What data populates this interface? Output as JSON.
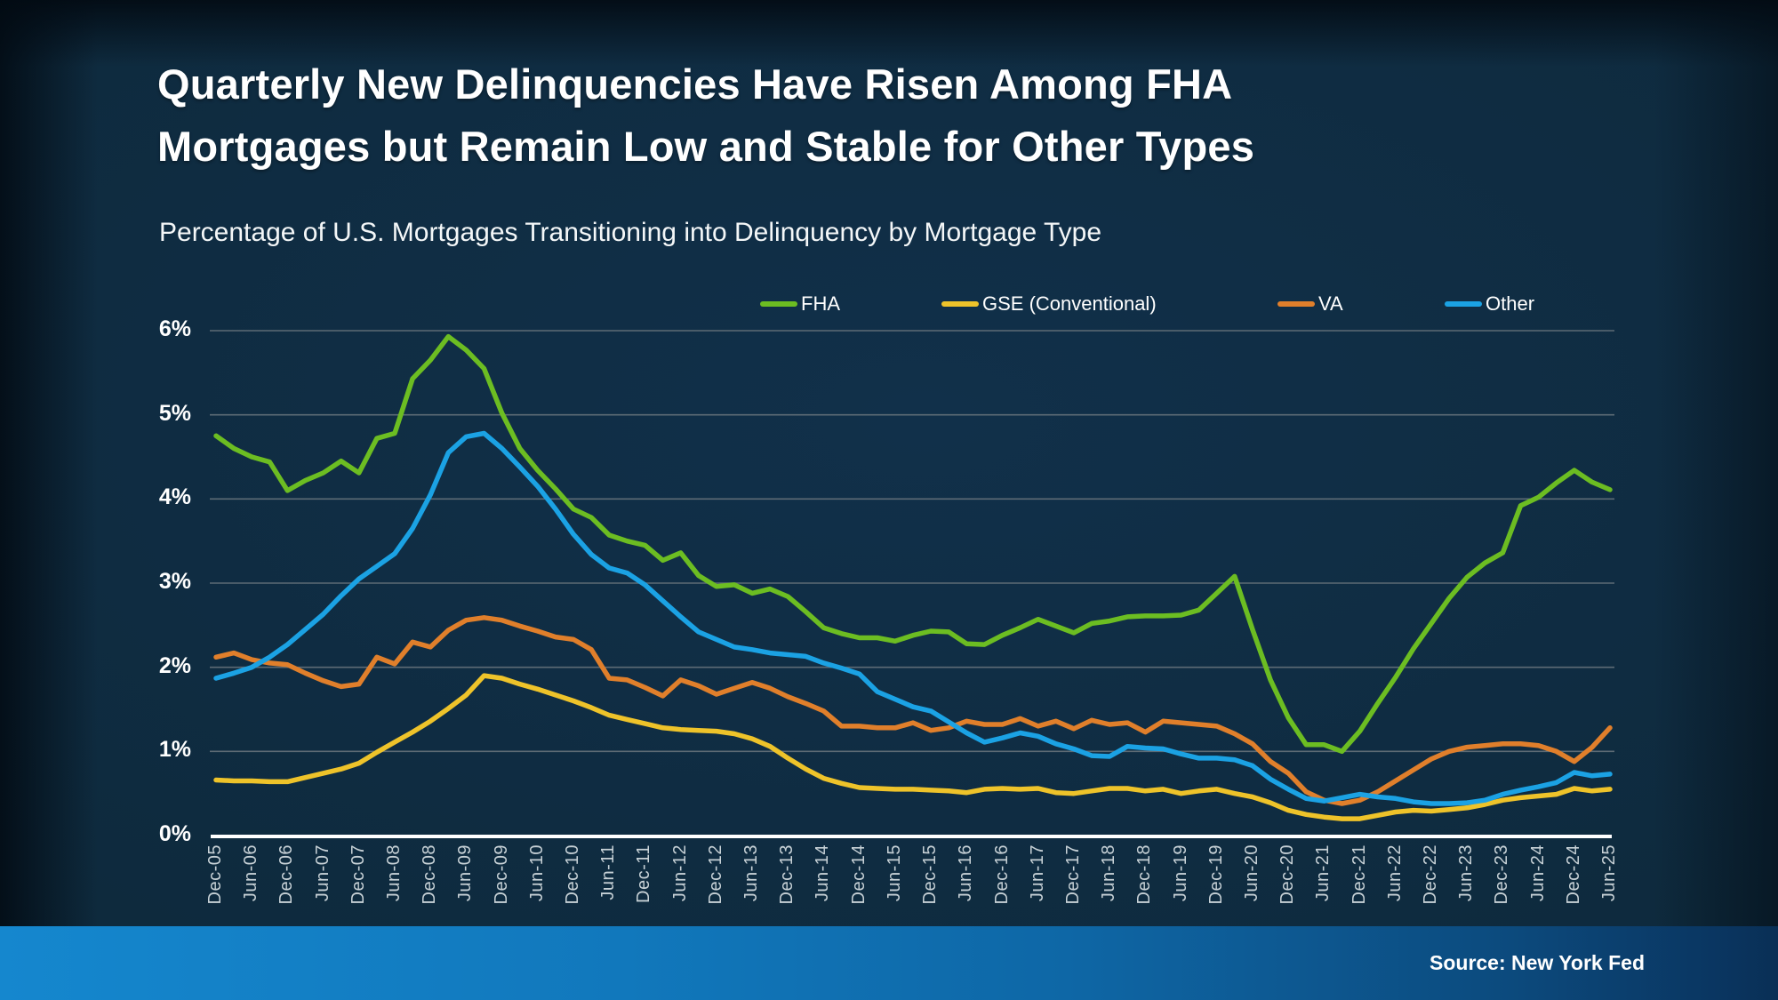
{
  "slide": {
    "title": "Quarterly New Delinquencies Have Risen Among FHA Mortgages but Remain Low and Stable for Other Types",
    "subtitle": "Percentage of U.S. Mortgages Transitioning into Delinquency by Mortgage Type",
    "source": "Source: New York Fed"
  },
  "colors": {
    "fha": "#6cbd22",
    "gse_conventional": "#eec32a",
    "va": "#e07f2b",
    "other": "#1ba2e4",
    "gridline": "#5d6b75",
    "zero_axis": "#ffffff",
    "x_label": "#c7d1d6",
    "y_label": "#ffffff",
    "background": "#0e2a3d",
    "source_bar_left": "#1587ce",
    "source_bar_right": "#092f55"
  },
  "chart_data": {
    "type": "line",
    "title": "Quarterly New Delinquencies Have Risen Among FHA Mortgages but Remain Low and Stable for Other Types",
    "subtitle": "Percentage of U.S. Mortgages Transitioning into Delinquency by Mortgage Type",
    "xlabel": "",
    "ylabel": "",
    "ylim": [
      0,
      6
    ],
    "y_tick_labels": [
      "0%",
      "1%",
      "2%",
      "3%",
      "4%",
      "5%",
      "6%"
    ],
    "grid": true,
    "legend_position": "top",
    "x_frequency": "quarterly",
    "x_tick_labels": [
      "Dec-05",
      "Jun-06",
      "Dec-06",
      "Jun-07",
      "Dec-07",
      "Jun-08",
      "Dec-08",
      "Jun-09",
      "Dec-09",
      "Jun-10",
      "Dec-10",
      "Jun-11",
      "Dec-11",
      "Jun-12",
      "Dec-12",
      "Jun-13",
      "Dec-13",
      "Jun-14",
      "Dec-14",
      "Jun-15",
      "Dec-15",
      "Jun-16",
      "Dec-16",
      "Jun-17",
      "Dec-17",
      "Jun-18",
      "Dec-18",
      "Jun-19",
      "Dec-19",
      "Jun-20",
      "Dec-20",
      "Jun-21",
      "Dec-21",
      "Jun-22",
      "Dec-22",
      "Jun-23",
      "Dec-23",
      "Jun-24",
      "Dec-24",
      "Jun-25"
    ],
    "series": [
      {
        "name": "FHA",
        "color": "#6cbd22",
        "values": [
          4.75,
          4.6,
          4.5,
          4.44,
          4.1,
          4.22,
          4.31,
          4.45,
          4.31,
          4.72,
          4.78,
          5.43,
          5.65,
          5.93,
          5.77,
          5.55,
          5.02,
          4.6,
          4.34,
          4.12,
          3.88,
          3.78,
          3.57,
          3.5,
          3.45,
          3.27,
          3.36,
          3.09,
          2.96,
          2.98,
          2.88,
          2.93,
          2.84,
          2.66,
          2.47,
          2.4,
          2.35,
          2.35,
          2.31,
          2.38,
          2.43,
          2.42,
          2.28,
          2.27,
          2.38,
          2.47,
          2.57,
          2.49,
          2.41,
          2.52,
          2.55,
          2.6,
          2.61,
          2.61,
          2.62,
          2.68,
          2.88,
          3.08,
          2.45,
          1.85,
          1.4,
          1.08,
          1.08,
          1.0,
          1.24,
          1.57,
          1.88,
          2.22,
          2.52,
          2.82,
          3.07,
          3.24,
          3.36,
          3.92,
          4.02,
          4.19,
          4.34,
          4.2,
          4.11
        ]
      },
      {
        "name": "GSE (Conventional)",
        "color": "#eec32a",
        "values": [
          0.66,
          0.65,
          0.65,
          0.64,
          0.64,
          0.69,
          0.74,
          0.79,
          0.86,
          0.99,
          1.11,
          1.23,
          1.36,
          1.51,
          1.67,
          1.9,
          1.87,
          1.8,
          1.74,
          1.67,
          1.6,
          1.52,
          1.43,
          1.38,
          1.33,
          1.28,
          1.26,
          1.25,
          1.24,
          1.21,
          1.15,
          1.06,
          0.92,
          0.79,
          0.68,
          0.62,
          0.57,
          0.56,
          0.55,
          0.55,
          0.54,
          0.53,
          0.51,
          0.55,
          0.56,
          0.55,
          0.56,
          0.51,
          0.5,
          0.53,
          0.56,
          0.56,
          0.53,
          0.55,
          0.5,
          0.53,
          0.55,
          0.5,
          0.46,
          0.39,
          0.3,
          0.25,
          0.22,
          0.2,
          0.2,
          0.24,
          0.28,
          0.3,
          0.29,
          0.31,
          0.33,
          0.37,
          0.42,
          0.45,
          0.47,
          0.49,
          0.56,
          0.53,
          0.55
        ]
      },
      {
        "name": "VA",
        "color": "#e07f2b",
        "values": [
          2.12,
          2.17,
          2.09,
          2.05,
          2.03,
          1.93,
          1.84,
          1.77,
          1.8,
          2.12,
          2.04,
          2.3,
          2.24,
          2.44,
          2.56,
          2.59,
          2.56,
          2.49,
          2.43,
          2.36,
          2.33,
          2.21,
          1.87,
          1.85,
          1.76,
          1.66,
          1.85,
          1.78,
          1.68,
          1.75,
          1.82,
          1.75,
          1.65,
          1.57,
          1.48,
          1.3,
          1.3,
          1.28,
          1.28,
          1.34,
          1.25,
          1.28,
          1.36,
          1.32,
          1.32,
          1.39,
          1.3,
          1.36,
          1.27,
          1.37,
          1.32,
          1.34,
          1.23,
          1.36,
          1.34,
          1.32,
          1.3,
          1.21,
          1.09,
          0.88,
          0.74,
          0.52,
          0.42,
          0.38,
          0.42,
          0.52,
          0.65,
          0.78,
          0.91,
          1.0,
          1.05,
          1.07,
          1.09,
          1.09,
          1.07,
          1.0,
          0.88,
          1.05,
          1.28
        ]
      },
      {
        "name": "Other",
        "color": "#1ba2e4",
        "values": [
          1.87,
          1.93,
          2.0,
          2.12,
          2.27,
          2.45,
          2.63,
          2.85,
          3.05,
          3.2,
          3.35,
          3.65,
          4.05,
          4.55,
          4.74,
          4.78,
          4.6,
          4.38,
          4.15,
          3.88,
          3.58,
          3.34,
          3.18,
          3.12,
          2.98,
          2.79,
          2.6,
          2.42,
          2.33,
          2.24,
          2.21,
          2.17,
          2.15,
          2.13,
          2.05,
          1.99,
          1.92,
          1.71,
          1.62,
          1.53,
          1.48,
          1.35,
          1.22,
          1.11,
          1.16,
          1.22,
          1.18,
          1.09,
          1.03,
          0.95,
          0.94,
          1.06,
          1.04,
          1.03,
          0.97,
          0.92,
          0.92,
          0.9,
          0.83,
          0.67,
          0.55,
          0.44,
          0.41,
          0.45,
          0.49,
          0.46,
          0.44,
          0.4,
          0.38,
          0.38,
          0.39,
          0.42,
          0.49,
          0.54,
          0.58,
          0.63,
          0.75,
          0.71,
          0.73
        ]
      }
    ]
  }
}
